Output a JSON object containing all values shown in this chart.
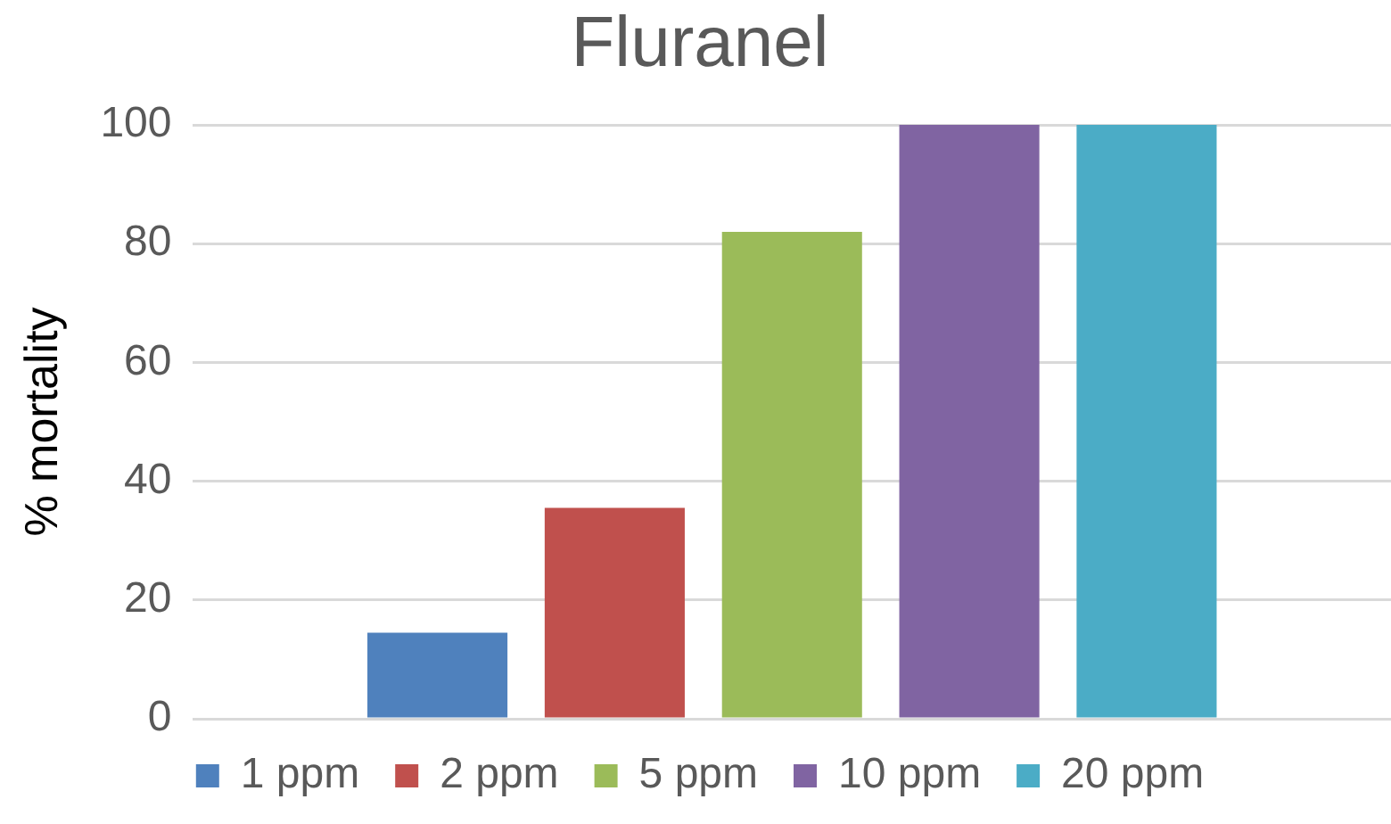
{
  "chart_data": {
    "type": "bar",
    "title": "Fluranel",
    "ylabel": "% mortality",
    "categories": [
      null
    ],
    "series": [
      {
        "name": "1 ppm",
        "color": "#4f81bd",
        "values": [
          14.5
        ]
      },
      {
        "name": "2 ppm",
        "color": "#c0504d",
        "values": [
          35.5
        ]
      },
      {
        "name": "5 ppm",
        "color": "#9bbb59",
        "values": [
          82
        ]
      },
      {
        "name": "10 ppm",
        "color": "#8064a2",
        "values": [
          100
        ]
      },
      {
        "name": "20 ppm",
        "color": "#4bacc6",
        "values": [
          100
        ]
      }
    ],
    "ylim": [
      0,
      100
    ],
    "yticks": [
      0,
      20,
      40,
      60,
      80,
      100
    ],
    "grid": "y",
    "legend": "bottom"
  }
}
